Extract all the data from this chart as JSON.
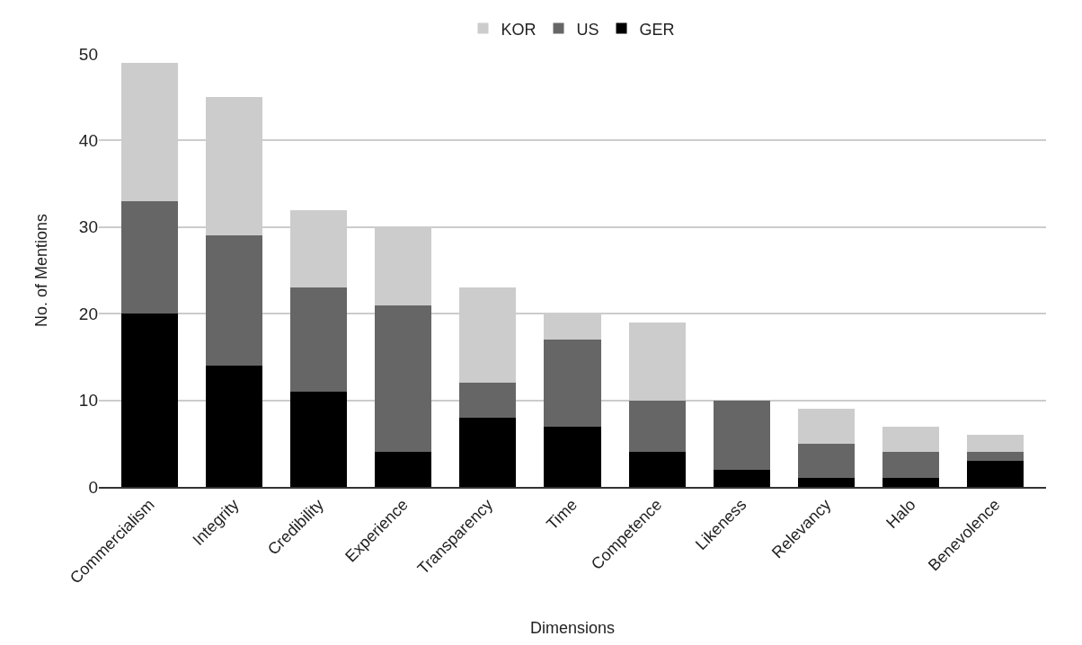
{
  "chart_data": {
    "type": "bar",
    "stacked": true,
    "xlabel": "Dimensions",
    "ylabel": "No. of Mentions",
    "categories": [
      "Commercialism",
      "Integrity",
      "Credibility",
      "Experience",
      "Transparency",
      "Time",
      "Competence",
      "Likeness",
      "Relevancy",
      "Halo",
      "Benevolence"
    ],
    "series": [
      {
        "name": "GER",
        "color": "#000000",
        "values": [
          20,
          14,
          11,
          4,
          8,
          7,
          4,
          2,
          1,
          1,
          3
        ]
      },
      {
        "name": "US",
        "color": "#666666",
        "values": [
          13,
          15,
          12,
          17,
          4,
          10,
          6,
          8,
          4,
          3,
          1
        ]
      },
      {
        "name": "KOR",
        "color": "#cccccc",
        "values": [
          16,
          16,
          9,
          9,
          11,
          3,
          9,
          0,
          4,
          3,
          2
        ]
      }
    ],
    "ylim": [
      0,
      50
    ],
    "yticks": [
      0,
      10,
      20,
      30,
      40,
      50
    ],
    "grid": "y",
    "legend": "top"
  }
}
